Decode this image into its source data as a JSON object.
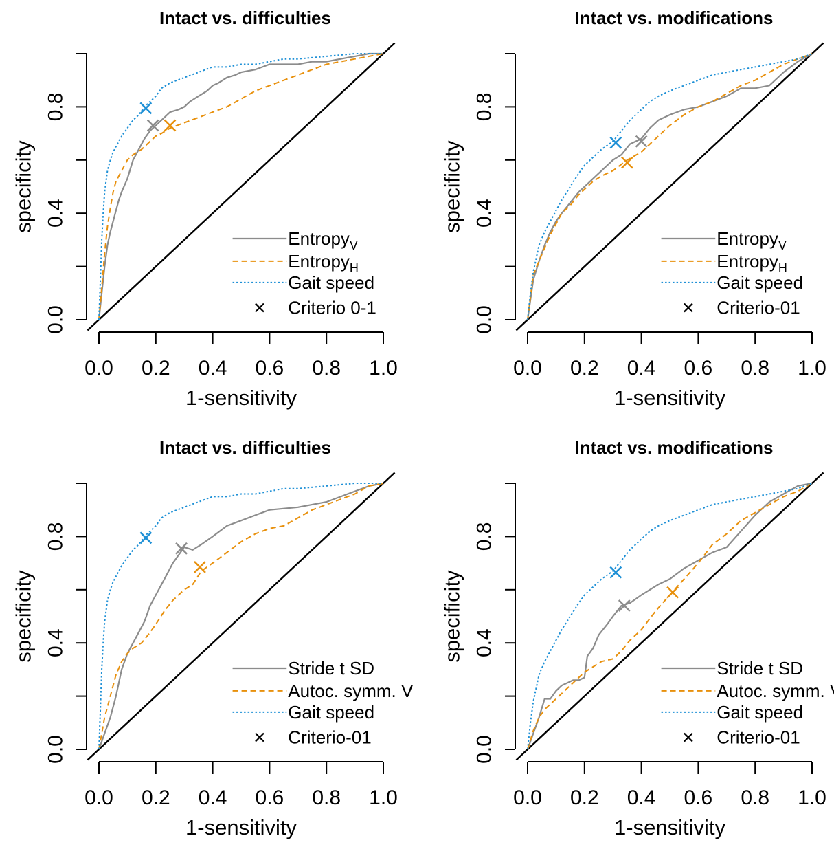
{
  "colors": {
    "grey": "#8c8c8c",
    "orange": "#e8900c",
    "blue": "#1e90d6",
    "black": "#000000"
  },
  "chart_data": [
    {
      "type": "line",
      "title": "Intact vs. difficulties",
      "xlabel": "1-sensitivity",
      "ylabel": "specificity",
      "xlim": [
        0,
        1
      ],
      "ylim": [
        0,
        1
      ],
      "xticks": [
        "0.0",
        "0.2",
        "0.4",
        "0.6",
        "0.8",
        "1.0"
      ],
      "yticks": [
        "0.0",
        "0.4",
        "0.8"
      ],
      "grid": false,
      "legend_position": "bottom-right",
      "series": [
        {
          "label_main": "Entropy",
          "label_sub": "V",
          "color": "grey",
          "style": "solid",
          "x": [
            0,
            0.01,
            0.02,
            0.03,
            0.04,
            0.05,
            0.06,
            0.07,
            0.08,
            0.1,
            0.12,
            0.14,
            0.16,
            0.18,
            0.2,
            0.22,
            0.25,
            0.28,
            0.3,
            0.32,
            0.35,
            0.38,
            0.4,
            0.42,
            0.45,
            0.48,
            0.5,
            0.55,
            0.6,
            0.65,
            0.7,
            0.75,
            0.8,
            0.85,
            0.9,
            0.95,
            1.0
          ],
          "y": [
            0,
            0.1,
            0.2,
            0.28,
            0.33,
            0.37,
            0.41,
            0.45,
            0.48,
            0.53,
            0.6,
            0.64,
            0.68,
            0.71,
            0.73,
            0.75,
            0.78,
            0.79,
            0.8,
            0.82,
            0.84,
            0.86,
            0.88,
            0.89,
            0.91,
            0.92,
            0.93,
            0.94,
            0.96,
            0.96,
            0.96,
            0.97,
            0.97,
            0.98,
            0.99,
            1.0,
            1.0
          ],
          "cut": [
            0.19,
            0.73
          ]
        },
        {
          "label_main": "Entropy",
          "label_sub": "H",
          "color": "orange",
          "style": "dashed",
          "x": [
            0,
            0.01,
            0.02,
            0.03,
            0.04,
            0.05,
            0.06,
            0.08,
            0.1,
            0.12,
            0.15,
            0.18,
            0.2,
            0.22,
            0.25,
            0.3,
            0.35,
            0.4,
            0.45,
            0.5,
            0.55,
            0.6,
            0.65,
            0.7,
            0.75,
            0.8,
            0.85,
            0.9,
            0.95,
            1.0
          ],
          "y": [
            0,
            0.12,
            0.25,
            0.35,
            0.42,
            0.48,
            0.52,
            0.56,
            0.6,
            0.62,
            0.64,
            0.67,
            0.69,
            0.7,
            0.72,
            0.74,
            0.76,
            0.78,
            0.8,
            0.83,
            0.86,
            0.88,
            0.9,
            0.92,
            0.94,
            0.96,
            0.97,
            0.98,
            0.99,
            1.0
          ],
          "cut": [
            0.25,
            0.73
          ]
        },
        {
          "label_main": "Gait speed",
          "label_sub": "",
          "color": "blue",
          "style": "dotted",
          "x": [
            0,
            0.005,
            0.01,
            0.015,
            0.02,
            0.03,
            0.04,
            0.05,
            0.06,
            0.08,
            0.1,
            0.12,
            0.14,
            0.16,
            0.18,
            0.2,
            0.22,
            0.25,
            0.3,
            0.35,
            0.4,
            0.45,
            0.5,
            0.55,
            0.6,
            0.65,
            0.7,
            0.8,
            0.9,
            1.0
          ],
          "y": [
            0,
            0.15,
            0.3,
            0.4,
            0.48,
            0.56,
            0.6,
            0.63,
            0.65,
            0.69,
            0.72,
            0.75,
            0.77,
            0.8,
            0.82,
            0.84,
            0.87,
            0.89,
            0.91,
            0.93,
            0.95,
            0.95,
            0.96,
            0.96,
            0.97,
            0.98,
            0.98,
            0.99,
            1.0,
            1.0
          ],
          "cut": [
            0.165,
            0.795
          ]
        }
      ],
      "criterion_label": "Criterio 0-1"
    },
    {
      "type": "line",
      "title": "Intact vs. modifications",
      "xlabel": "1-sensitivity",
      "ylabel": "specificity",
      "xlim": [
        0,
        1
      ],
      "ylim": [
        0,
        1
      ],
      "xticks": [
        "0.0",
        "0.2",
        "0.4",
        "0.6",
        "0.8",
        "1.0"
      ],
      "yticks": [
        "0.0",
        "0.4",
        "0.8"
      ],
      "grid": false,
      "legend_position": "bottom-right",
      "series": [
        {
          "label_main": "Entropy",
          "label_sub": "V",
          "color": "grey",
          "style": "solid",
          "x": [
            0,
            0.02,
            0.04,
            0.06,
            0.08,
            0.1,
            0.12,
            0.15,
            0.18,
            0.2,
            0.23,
            0.26,
            0.3,
            0.33,
            0.36,
            0.4,
            0.43,
            0.46,
            0.5,
            0.55,
            0.6,
            0.65,
            0.7,
            0.75,
            0.8,
            0.85,
            0.9,
            0.95,
            1.0
          ],
          "y": [
            0,
            0.15,
            0.22,
            0.28,
            0.33,
            0.37,
            0.4,
            0.44,
            0.48,
            0.5,
            0.53,
            0.56,
            0.6,
            0.62,
            0.66,
            0.68,
            0.72,
            0.75,
            0.77,
            0.79,
            0.8,
            0.82,
            0.84,
            0.87,
            0.87,
            0.88,
            0.93,
            0.97,
            1.0
          ],
          "cut": [
            0.4,
            0.67
          ]
        },
        {
          "label_main": "Entropy",
          "label_sub": "H",
          "color": "orange",
          "style": "dashed",
          "x": [
            0,
            0.02,
            0.04,
            0.06,
            0.08,
            0.1,
            0.12,
            0.15,
            0.18,
            0.2,
            0.23,
            0.26,
            0.3,
            0.35,
            0.4,
            0.45,
            0.5,
            0.55,
            0.6,
            0.65,
            0.7,
            0.75,
            0.8,
            0.85,
            0.9,
            0.95,
            1.0
          ],
          "y": [
            0,
            0.17,
            0.22,
            0.27,
            0.32,
            0.36,
            0.4,
            0.43,
            0.47,
            0.49,
            0.52,
            0.54,
            0.56,
            0.6,
            0.63,
            0.68,
            0.73,
            0.77,
            0.8,
            0.82,
            0.85,
            0.88,
            0.9,
            0.93,
            0.96,
            0.98,
            1.0
          ],
          "cut": [
            0.35,
            0.59
          ]
        },
        {
          "label_main": "Gait speed",
          "label_sub": "",
          "color": "blue",
          "style": "dotted",
          "x": [
            0,
            0.01,
            0.02,
            0.04,
            0.06,
            0.08,
            0.1,
            0.12,
            0.15,
            0.18,
            0.2,
            0.23,
            0.26,
            0.3,
            0.33,
            0.36,
            0.4,
            0.43,
            0.46,
            0.5,
            0.55,
            0.6,
            0.65,
            0.7,
            0.75,
            0.8,
            0.85,
            0.9,
            0.95,
            1.0
          ],
          "y": [
            0,
            0.1,
            0.18,
            0.28,
            0.33,
            0.37,
            0.41,
            0.45,
            0.5,
            0.55,
            0.58,
            0.61,
            0.64,
            0.67,
            0.71,
            0.75,
            0.79,
            0.82,
            0.84,
            0.86,
            0.88,
            0.9,
            0.92,
            0.93,
            0.94,
            0.95,
            0.96,
            0.97,
            0.98,
            1.0
          ],
          "cut": [
            0.31,
            0.665
          ]
        }
      ],
      "criterion_label": "Criterio-01"
    },
    {
      "type": "line",
      "title": "Intact vs. difficulties",
      "xlabel": "1-sensitivity",
      "ylabel": "specificity",
      "xlim": [
        0,
        1
      ],
      "ylim": [
        0,
        1
      ],
      "xticks": [
        "0.0",
        "0.2",
        "0.4",
        "0.6",
        "0.8",
        "1.0"
      ],
      "yticks": [
        "0.0",
        "0.4",
        "0.8"
      ],
      "grid": false,
      "legend_position": "bottom-right",
      "series": [
        {
          "label_main": "Stride t SD",
          "label_sub": "",
          "color": "grey",
          "style": "solid",
          "x": [
            0,
            0.02,
            0.04,
            0.06,
            0.08,
            0.1,
            0.12,
            0.14,
            0.16,
            0.18,
            0.2,
            0.22,
            0.24,
            0.26,
            0.28,
            0.3,
            0.33,
            0.36,
            0.4,
            0.45,
            0.5,
            0.55,
            0.6,
            0.7,
            0.8,
            0.85,
            0.9,
            0.95,
            1.0
          ],
          "y": [
            0,
            0.06,
            0.12,
            0.2,
            0.3,
            0.36,
            0.4,
            0.44,
            0.48,
            0.54,
            0.58,
            0.62,
            0.66,
            0.7,
            0.73,
            0.76,
            0.75,
            0.77,
            0.8,
            0.84,
            0.86,
            0.88,
            0.9,
            0.91,
            0.93,
            0.95,
            0.97,
            0.99,
            1.0
          ],
          "cut": [
            0.29,
            0.755
          ]
        },
        {
          "label_main": "Autoc. symm. V",
          "label_sub": "",
          "color": "orange",
          "style": "dashed",
          "x": [
            0,
            0.02,
            0.04,
            0.06,
            0.08,
            0.1,
            0.12,
            0.15,
            0.18,
            0.2,
            0.23,
            0.26,
            0.3,
            0.33,
            0.36,
            0.4,
            0.45,
            0.5,
            0.55,
            0.6,
            0.65,
            0.7,
            0.75,
            0.8,
            0.85,
            0.9,
            0.95,
            1.0
          ],
          "y": [
            0,
            0.12,
            0.2,
            0.28,
            0.33,
            0.36,
            0.38,
            0.4,
            0.44,
            0.47,
            0.52,
            0.56,
            0.6,
            0.62,
            0.67,
            0.7,
            0.74,
            0.78,
            0.81,
            0.83,
            0.84,
            0.87,
            0.9,
            0.92,
            0.94,
            0.96,
            0.99,
            1.0
          ],
          "cut": [
            0.355,
            0.685
          ]
        },
        {
          "label_main": "Gait speed",
          "label_sub": "",
          "color": "blue",
          "style": "dotted",
          "x": [
            0,
            0.005,
            0.01,
            0.015,
            0.02,
            0.03,
            0.04,
            0.05,
            0.06,
            0.08,
            0.1,
            0.12,
            0.14,
            0.16,
            0.18,
            0.2,
            0.22,
            0.25,
            0.3,
            0.35,
            0.4,
            0.45,
            0.5,
            0.55,
            0.6,
            0.65,
            0.7,
            0.8,
            0.9,
            1.0
          ],
          "y": [
            0,
            0.15,
            0.3,
            0.4,
            0.48,
            0.56,
            0.6,
            0.63,
            0.65,
            0.69,
            0.72,
            0.75,
            0.77,
            0.8,
            0.82,
            0.84,
            0.87,
            0.89,
            0.91,
            0.93,
            0.95,
            0.95,
            0.96,
            0.96,
            0.97,
            0.98,
            0.98,
            0.99,
            1.0,
            1.0
          ],
          "cut": [
            0.165,
            0.795
          ]
        }
      ],
      "criterion_label": "Criterio-01"
    },
    {
      "type": "line",
      "title": "Intact vs. modifications",
      "xlabel": "1-sensitivity",
      "ylabel": "specificity",
      "xlim": [
        0,
        1
      ],
      "ylim": [
        0,
        1
      ],
      "xticks": [
        "0.0",
        "0.2",
        "0.4",
        "0.6",
        "0.8",
        "1.0"
      ],
      "yticks": [
        "0.0",
        "0.4",
        "0.8"
      ],
      "grid": false,
      "legend_position": "bottom-right",
      "series": [
        {
          "label_main": "Stride t SD",
          "label_sub": "",
          "color": "grey",
          "style": "solid",
          "x": [
            0,
            0.02,
            0.04,
            0.06,
            0.08,
            0.1,
            0.12,
            0.14,
            0.16,
            0.18,
            0.2,
            0.21,
            0.23,
            0.25,
            0.28,
            0.3,
            0.33,
            0.36,
            0.4,
            0.43,
            0.46,
            0.5,
            0.55,
            0.6,
            0.65,
            0.7,
            0.75,
            0.8,
            0.85,
            0.9,
            0.95,
            1.0
          ],
          "y": [
            0,
            0.06,
            0.12,
            0.19,
            0.19,
            0.22,
            0.24,
            0.25,
            0.26,
            0.26,
            0.27,
            0.35,
            0.38,
            0.43,
            0.47,
            0.5,
            0.54,
            0.55,
            0.58,
            0.6,
            0.62,
            0.64,
            0.68,
            0.71,
            0.74,
            0.76,
            0.82,
            0.88,
            0.93,
            0.96,
            0.99,
            1.0
          ],
          "cut": [
            0.34,
            0.54
          ]
        },
        {
          "label_main": "Autoc. symm. V",
          "label_sub": "",
          "color": "orange",
          "style": "dashed",
          "x": [
            0,
            0.02,
            0.04,
            0.06,
            0.08,
            0.1,
            0.12,
            0.15,
            0.18,
            0.2,
            0.23,
            0.26,
            0.3,
            0.33,
            0.36,
            0.4,
            0.45,
            0.5,
            0.55,
            0.6,
            0.65,
            0.7,
            0.75,
            0.8,
            0.85,
            0.9,
            0.95,
            1.0
          ],
          "y": [
            0,
            0.07,
            0.12,
            0.15,
            0.17,
            0.19,
            0.21,
            0.24,
            0.27,
            0.29,
            0.31,
            0.33,
            0.34,
            0.37,
            0.41,
            0.45,
            0.52,
            0.58,
            0.64,
            0.7,
            0.77,
            0.81,
            0.86,
            0.89,
            0.92,
            0.95,
            0.97,
            1.0
          ],
          "cut": [
            0.51,
            0.59
          ]
        },
        {
          "label_main": "Gait speed",
          "label_sub": "",
          "color": "blue",
          "style": "dotted",
          "x": [
            0,
            0.01,
            0.02,
            0.04,
            0.06,
            0.08,
            0.1,
            0.12,
            0.15,
            0.18,
            0.2,
            0.23,
            0.26,
            0.3,
            0.33,
            0.36,
            0.4,
            0.43,
            0.46,
            0.5,
            0.55,
            0.6,
            0.65,
            0.7,
            0.75,
            0.8,
            0.85,
            0.9,
            0.95,
            1.0
          ],
          "y": [
            0,
            0.1,
            0.18,
            0.28,
            0.33,
            0.37,
            0.41,
            0.45,
            0.5,
            0.55,
            0.58,
            0.61,
            0.64,
            0.67,
            0.71,
            0.75,
            0.79,
            0.82,
            0.84,
            0.86,
            0.88,
            0.9,
            0.92,
            0.93,
            0.94,
            0.95,
            0.96,
            0.97,
            0.98,
            1.0
          ],
          "cut": [
            0.31,
            0.665
          ]
        }
      ],
      "criterion_label": "Criterio-01"
    }
  ]
}
